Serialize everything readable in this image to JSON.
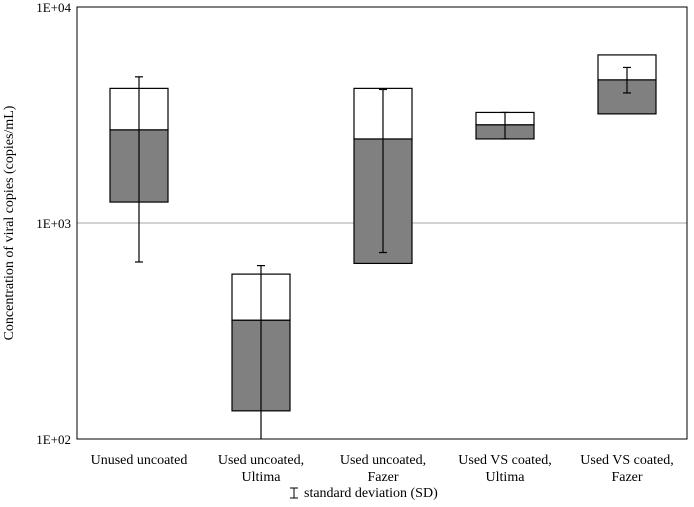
{
  "chart_data": {
    "type": "box",
    "yscale": "log",
    "ylim": [
      100,
      10000
    ],
    "ylabel": "Concentration of viral copies (copies/mL)",
    "yticks": [
      {
        "value": 10000,
        "label": "1E+04"
      },
      {
        "value": 1000,
        "label": "1E+03"
      },
      {
        "value": 100,
        "label": "1E+02"
      }
    ],
    "gridlines": [
      1000
    ],
    "grid": true,
    "categories": [
      {
        "line1": "Unused uncoated",
        "line2": ""
      },
      {
        "line1": "Used uncoated,",
        "line2": "Ultima"
      },
      {
        "line1": "Used uncoated,",
        "line2": "Fazer"
      },
      {
        "line1": "Used VS coated,",
        "line2": "Ultima"
      },
      {
        "line1": "Used VS coated,",
        "line2": "Fazer"
      }
    ],
    "series": [
      {
        "low": 1250,
        "mid": 2700,
        "high": 4200,
        "sd_low": 660,
        "sd_high": 4750
      },
      {
        "low": 135,
        "mid": 355,
        "high": 580,
        "sd_low": 100,
        "sd_high": 635
      },
      {
        "low": 650,
        "mid": 2450,
        "high": 4200,
        "sd_low": 730,
        "sd_high": 4150
      },
      {
        "low": 2450,
        "mid": 2850,
        "high": 3250,
        "sd_low": 2450,
        "sd_high": 3250
      },
      {
        "low": 3200,
        "mid": 4600,
        "high": 6000,
        "sd_low": 4000,
        "sd_high": 5250
      }
    ],
    "colors": {
      "lower_box": "#808080",
      "upper_box": "#ffffff",
      "stroke": "#000000",
      "gridline": "#a6a6a6"
    },
    "legend": {
      "text": "standard deviation (SD)",
      "placement": "bottom-center"
    }
  }
}
